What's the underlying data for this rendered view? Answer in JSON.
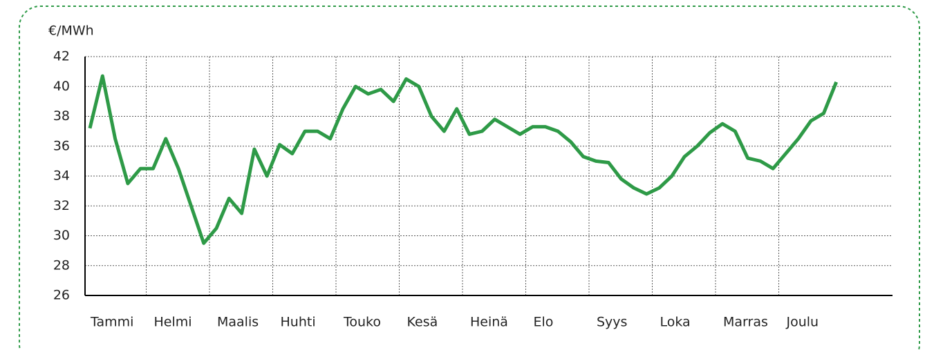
{
  "chart_data": {
    "type": "line",
    "ylabel": "€/MWh",
    "categories": [
      "Tammi",
      null,
      null,
      null,
      null,
      "Helmi",
      null,
      null,
      null,
      null,
      "Maalis",
      null,
      null,
      null,
      null,
      "Huhti",
      null,
      null,
      null,
      null,
      "Touko",
      null,
      null,
      null,
      null,
      "Kesä",
      null,
      null,
      null,
      null,
      "Heinä",
      null,
      null,
      null,
      null,
      "Elo",
      null,
      null,
      null,
      null,
      "Syys",
      null,
      null,
      null,
      null,
      "Loka",
      null,
      null,
      null,
      null,
      "Marras",
      null,
      null,
      null,
      null,
      "Joulu",
      null,
      null,
      null,
      null
    ],
    "series": [
      {
        "name": null,
        "color": "#2e9a47",
        "values": [
          37.2,
          40.7,
          36.5,
          33.5,
          34.5,
          34.5,
          36.5,
          34.5,
          32,
          29.5,
          30.5,
          32.5,
          31.5,
          35.8,
          34,
          36.1,
          35.5,
          37,
          37,
          36.5,
          38.5,
          40,
          39.5,
          39.8,
          39,
          40.5,
          40,
          38,
          37,
          38.5,
          36.8,
          37,
          37.8,
          37.3,
          36.8,
          37.3,
          37.3,
          37,
          36.3,
          35.3,
          35,
          34.9,
          33.8,
          33.2,
          32.8,
          33.2,
          34,
          35.3,
          36,
          36.9,
          37.5,
          37,
          35.2,
          35,
          34.5,
          35.5,
          36.5,
          37.7,
          38.2,
          40.3
        ]
      }
    ],
    "ylim": [
      26,
      42
    ],
    "yticks": [
      26,
      28,
      30,
      32,
      34,
      36,
      38,
      40,
      42
    ],
    "grid": true
  }
}
